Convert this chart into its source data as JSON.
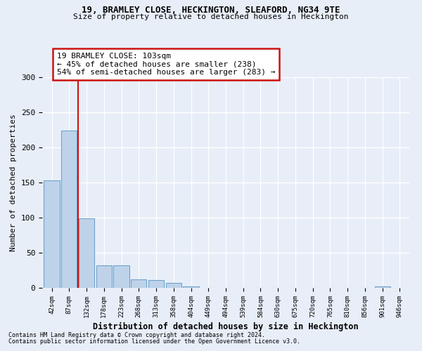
{
  "title1": "19, BRAMLEY CLOSE, HECKINGTON, SLEAFORD, NG34 9TE",
  "title2": "Size of property relative to detached houses in Heckington",
  "xlabel": "Distribution of detached houses by size in Heckington",
  "ylabel": "Number of detached properties",
  "bar_labels": [
    "42sqm",
    "87sqm",
    "132sqm",
    "178sqm",
    "223sqm",
    "268sqm",
    "313sqm",
    "358sqm",
    "404sqm",
    "449sqm",
    "494sqm",
    "539sqm",
    "584sqm",
    "630sqm",
    "675sqm",
    "720sqm",
    "765sqm",
    "810sqm",
    "856sqm",
    "901sqm",
    "946sqm"
  ],
  "bar_values": [
    153,
    224,
    99,
    32,
    32,
    12,
    11,
    7,
    2,
    0,
    0,
    0,
    0,
    0,
    0,
    0,
    0,
    0,
    0,
    2,
    0
  ],
  "bar_color": "#bed3ea",
  "bar_edge_color": "#6ea3cc",
  "bg_color": "#e8eef8",
  "grid_color": "#ffffff",
  "vline_x": 1.5,
  "vline_color": "#cc1111",
  "annotation_text": "19 BRAMLEY CLOSE: 103sqm\n← 45% of detached houses are smaller (238)\n54% of semi-detached houses are larger (283) →",
  "annotation_box_color": "#ffffff",
  "annotation_box_edge": "#cc1111",
  "footnote1": "Contains HM Land Registry data © Crown copyright and database right 2024.",
  "footnote2": "Contains public sector information licensed under the Open Government Licence v3.0.",
  "ylim": [
    0,
    300
  ],
  "yticks": [
    0,
    50,
    100,
    150,
    200,
    250,
    300
  ]
}
